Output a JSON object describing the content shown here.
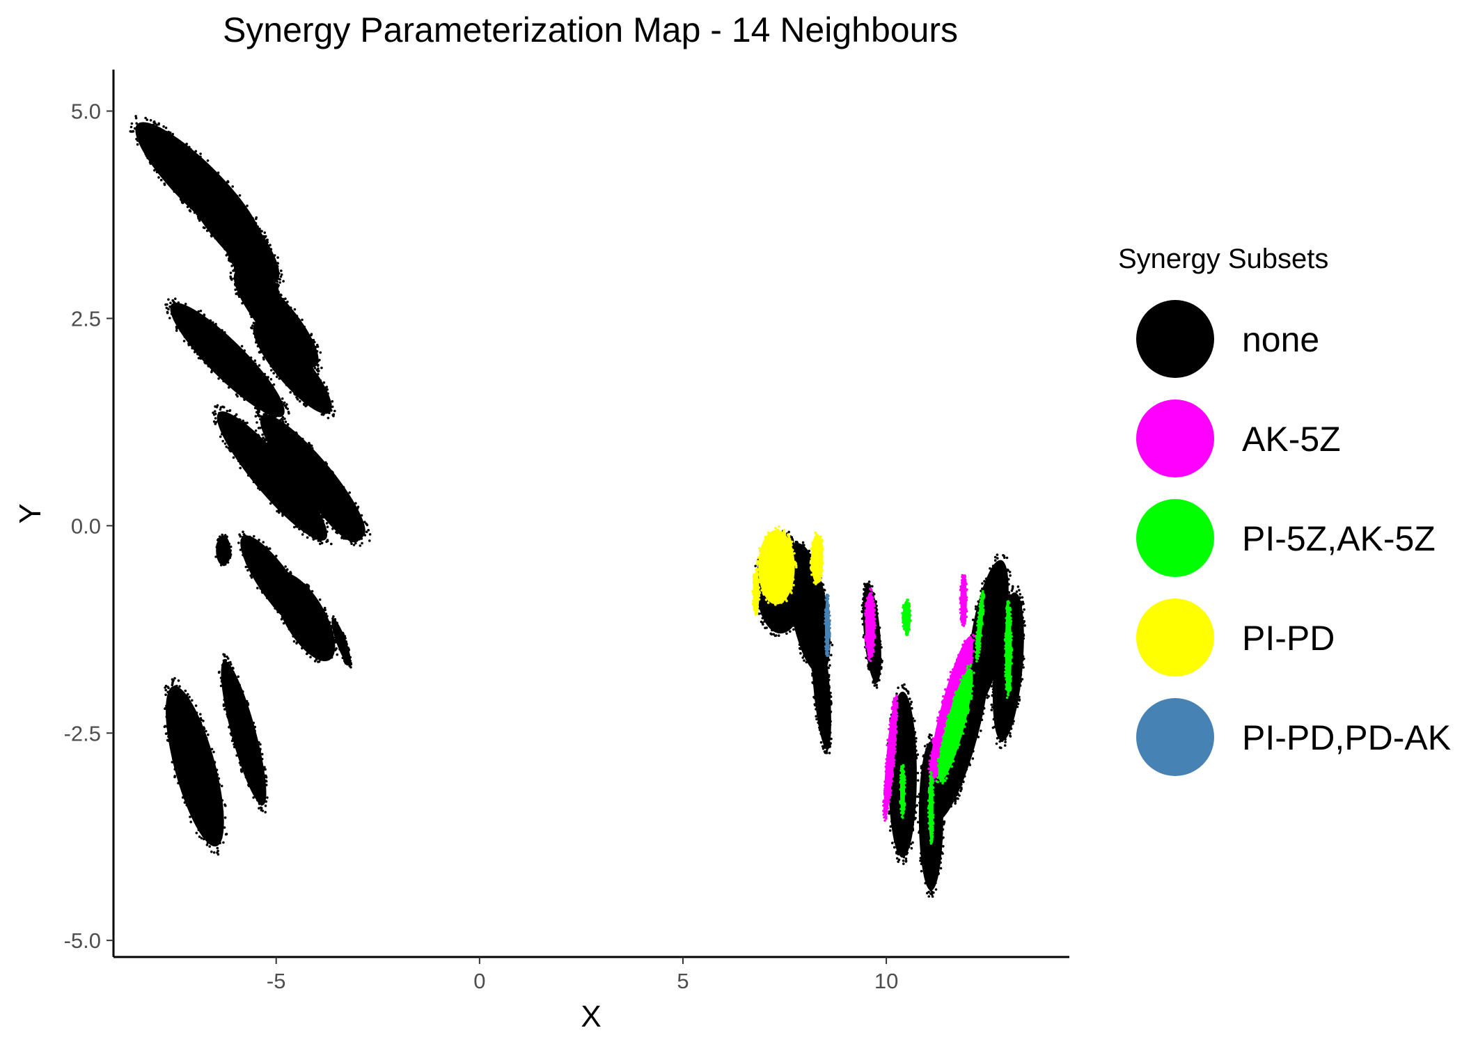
{
  "chart_data": {
    "type": "scatter",
    "title": "Synergy Parameterization Map - 14 Neighbours",
    "xlabel": "X",
    "ylabel": "Y",
    "xlim": [
      -9.0,
      14.5
    ],
    "ylim": [
      -5.2,
      5.5
    ],
    "xticks": [
      -5,
      0,
      5,
      10
    ],
    "xtick_labels": [
      "-5",
      "0",
      "5",
      "10"
    ],
    "yticks": [
      5.0,
      2.5,
      0.0,
      -2.5,
      -5.0
    ],
    "ytick_labels": [
      "5.0",
      "2.5",
      "0.0",
      "-2.5",
      "-5.0"
    ],
    "grid": false,
    "legend": {
      "title": "Synergy Subsets",
      "position": "right",
      "entries": [
        {
          "label": "none",
          "color": "#000000"
        },
        {
          "label": "AK-5Z",
          "color": "#ff00ff"
        },
        {
          "label": "PI-5Z,AK-5Z",
          "color": "#00ff00"
        },
        {
          "label": "PI-PD",
          "color": "#ffff00"
        },
        {
          "label": "PI-PD,PD-AK",
          "color": "#4682b4"
        }
      ]
    },
    "series": [
      {
        "name": "none",
        "color": "#000000",
        "clusters": [
          {
            "cx": -6.9,
            "cy": 4.1,
            "rx": 0.55,
            "ry": 1.05,
            "angle": -45
          },
          {
            "cx": -6.1,
            "cy": 3.6,
            "rx": 0.5,
            "ry": 0.85,
            "angle": -40
          },
          {
            "cx": -5.6,
            "cy": 3.1,
            "rx": 0.35,
            "ry": 0.55,
            "angle": -35
          },
          {
            "cx": -6.2,
            "cy": 2.0,
            "rx": 0.45,
            "ry": 0.95,
            "angle": -45
          },
          {
            "cx": -5.0,
            "cy": 2.5,
            "rx": 0.45,
            "ry": 0.75,
            "angle": -40
          },
          {
            "cx": -4.6,
            "cy": 1.9,
            "rx": 0.4,
            "ry": 0.7,
            "angle": -40
          },
          {
            "cx": -5.1,
            "cy": 0.6,
            "rx": 0.45,
            "ry": 1.0,
            "angle": -40
          },
          {
            "cx": -4.1,
            "cy": 0.6,
            "rx": 0.45,
            "ry": 0.95,
            "angle": -40
          },
          {
            "cx": -3.7,
            "cy": 0.3,
            "rx": 0.35,
            "ry": 0.6,
            "angle": -35
          },
          {
            "cx": -5.0,
            "cy": -0.7,
            "rx": 0.4,
            "ry": 0.7,
            "angle": -35
          },
          {
            "cx": -4.3,
            "cy": -1.1,
            "rx": 0.5,
            "ry": 0.6,
            "angle": -30
          },
          {
            "cx": -6.3,
            "cy": -0.3,
            "rx": 0.18,
            "ry": 0.18,
            "angle": 0
          },
          {
            "cx": -7.0,
            "cy": -2.9,
            "rx": 0.5,
            "ry": 1.0,
            "angle": -15
          },
          {
            "cx": -5.8,
            "cy": -2.5,
            "rx": 0.3,
            "ry": 0.9,
            "angle": -15
          },
          {
            "cx": -3.4,
            "cy": -1.4,
            "rx": 0.12,
            "ry": 0.3,
            "angle": -20
          },
          {
            "cx": 7.4,
            "cy": -0.7,
            "rx": 0.6,
            "ry": 0.6,
            "angle": 0
          },
          {
            "cx": 8.1,
            "cy": -1.0,
            "rx": 0.45,
            "ry": 0.8,
            "angle": -10
          },
          {
            "cx": 8.4,
            "cy": -1.9,
            "rx": 0.2,
            "ry": 0.8,
            "angle": -5
          },
          {
            "cx": 9.65,
            "cy": -1.3,
            "rx": 0.2,
            "ry": 0.6,
            "angle": -5
          },
          {
            "cx": 10.4,
            "cy": -3.0,
            "rx": 0.35,
            "ry": 1.0,
            "angle": 0
          },
          {
            "cx": 11.1,
            "cy": -3.5,
            "rx": 0.3,
            "ry": 0.9,
            "angle": 0
          },
          {
            "cx": 11.8,
            "cy": -2.5,
            "rx": 0.45,
            "ry": 1.1,
            "angle": 15
          },
          {
            "cx": 12.5,
            "cy": -1.3,
            "rx": 0.4,
            "ry": 0.9,
            "angle": 10
          },
          {
            "cx": 13.0,
            "cy": -1.7,
            "rx": 0.35,
            "ry": 0.9,
            "angle": 5
          }
        ]
      },
      {
        "name": "AK-5Z",
        "color": "#ff00ff",
        "clusters": [
          {
            "cx": 9.6,
            "cy": -1.2,
            "rx": 0.12,
            "ry": 0.4,
            "angle": 0
          },
          {
            "cx": 10.1,
            "cy": -2.8,
            "rx": 0.1,
            "ry": 0.7,
            "angle": 5
          },
          {
            "cx": 11.6,
            "cy": -2.2,
            "rx": 0.25,
            "ry": 0.9,
            "angle": 15
          },
          {
            "cx": 11.9,
            "cy": -0.9,
            "rx": 0.08,
            "ry": 0.3,
            "angle": 0
          }
        ]
      },
      {
        "name": "PI-5Z,AK-5Z",
        "color": "#00ff00",
        "clusters": [
          {
            "cx": 10.5,
            "cy": -1.1,
            "rx": 0.1,
            "ry": 0.2,
            "angle": 0
          },
          {
            "cx": 11.7,
            "cy": -2.4,
            "rx": 0.22,
            "ry": 0.7,
            "angle": 15
          },
          {
            "cx": 13.0,
            "cy": -1.5,
            "rx": 0.08,
            "ry": 0.55,
            "angle": 0
          },
          {
            "cx": 12.3,
            "cy": -1.2,
            "rx": 0.06,
            "ry": 0.4,
            "angle": 5
          },
          {
            "cx": 10.4,
            "cy": -3.2,
            "rx": 0.06,
            "ry": 0.3,
            "angle": 0
          },
          {
            "cx": 11.1,
            "cy": -3.4,
            "rx": 0.06,
            "ry": 0.4,
            "angle": 0
          }
        ]
      },
      {
        "name": "PI-PD",
        "color": "#ffff00",
        "clusters": [
          {
            "cx": 7.3,
            "cy": -0.5,
            "rx": 0.45,
            "ry": 0.45,
            "angle": 0
          },
          {
            "cx": 8.3,
            "cy": -0.4,
            "rx": 0.15,
            "ry": 0.3,
            "angle": 0
          },
          {
            "cx": 6.8,
            "cy": -0.8,
            "rx": 0.08,
            "ry": 0.25,
            "angle": 0
          }
        ]
      },
      {
        "name": "PI-PD,PD-AK",
        "color": "#4682b4",
        "clusters": [
          {
            "cx": 8.55,
            "cy": -1.2,
            "rx": 0.06,
            "ry": 0.35,
            "angle": 0
          }
        ]
      }
    ]
  }
}
